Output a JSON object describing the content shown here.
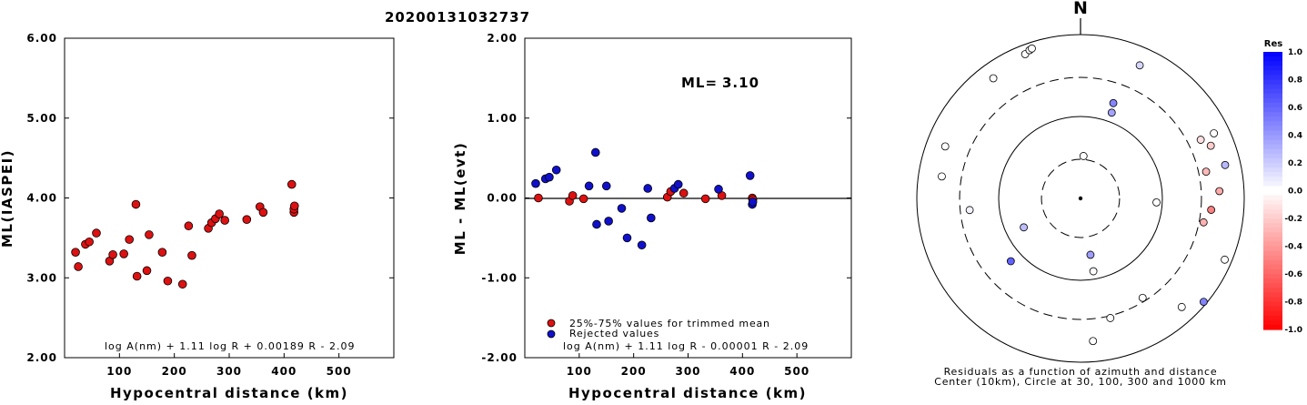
{
  "title": "20200131032737",
  "chart_data": [
    {
      "type": "scatter",
      "xlabel": "Hypocentral distance (km)",
      "ylabel": "ML(IASPEI)",
      "xlim": [
        0,
        600
      ],
      "ylim": [
        2,
        6
      ],
      "xticks": [
        "100",
        "200",
        "300",
        "400",
        "500"
      ],
      "yticks": [
        "2.00",
        "3.00",
        "4.00",
        "5.00",
        "6.00"
      ],
      "formula": "log A(nm) + 1.11 log R + 0.00189 R - 2.09",
      "color": "#dd1111",
      "points": [
        [
          20,
          3.32
        ],
        [
          25,
          3.14
        ],
        [
          38,
          3.42
        ],
        [
          45,
          3.45
        ],
        [
          58,
          3.56
        ],
        [
          82,
          3.21
        ],
        [
          88,
          3.29
        ],
        [
          108,
          3.3
        ],
        [
          118,
          3.48
        ],
        [
          130,
          3.92
        ],
        [
          132,
          3.02
        ],
        [
          150,
          3.09
        ],
        [
          154,
          3.54
        ],
        [
          178,
          3.32
        ],
        [
          188,
          2.96
        ],
        [
          215,
          2.92
        ],
        [
          226,
          3.65
        ],
        [
          232,
          3.28
        ],
        [
          262,
          3.62
        ],
        [
          268,
          3.69
        ],
        [
          275,
          3.74
        ],
        [
          282,
          3.8
        ],
        [
          292,
          3.72
        ],
        [
          332,
          3.73
        ],
        [
          356,
          3.89
        ],
        [
          362,
          3.82
        ],
        [
          414,
          4.17
        ],
        [
          418,
          3.82
        ],
        [
          418,
          3.86
        ],
        [
          419,
          3.9
        ]
      ]
    },
    {
      "type": "scatter",
      "xlabel": "Hypocentral distance (km)",
      "ylabel": "ML - ML(evt)",
      "xlim": [
        0,
        600
      ],
      "ylim": [
        -2,
        2
      ],
      "xticks": [
        "100",
        "200",
        "300",
        "400",
        "500"
      ],
      "yticks": [
        "-2.00",
        "-1.00",
        "0.00",
        "1.00",
        "2.00"
      ],
      "formula": "log A(nm) + 1.11 log R - 0.00001 R - 2.09",
      "ml_label": "ML=",
      "ml_value": "3.10",
      "reference_line": 0,
      "legend": [
        {
          "label": "25%-75% values for trimmed mean",
          "color": "#dd1111"
        },
        {
          "label": "Rejected values",
          "color": "#1010cc"
        }
      ],
      "series": [
        {
          "name": "25%-75% values for trimmed mean",
          "color": "#dd1111",
          "points": [
            [
              25,
              0.0
            ],
            [
              82,
              -0.04
            ],
            [
              88,
              0.03
            ],
            [
              108,
              -0.01
            ],
            [
              262,
              0.01
            ],
            [
              268,
              0.08
            ],
            [
              292,
              0.06
            ],
            [
              332,
              -0.01
            ],
            [
              362,
              0.03
            ],
            [
              418,
              0.0
            ],
            [
              419,
              -0.02
            ]
          ]
        },
        {
          "name": "Rejected values",
          "color": "#1010cc",
          "points": [
            [
              20,
              0.18
            ],
            [
              38,
              0.24
            ],
            [
              45,
              0.26
            ],
            [
              58,
              0.35
            ],
            [
              118,
              0.15
            ],
            [
              130,
              0.57
            ],
            [
              132,
              -0.33
            ],
            [
              150,
              0.15
            ],
            [
              154,
              -0.29
            ],
            [
              178,
              -0.13
            ],
            [
              188,
              -0.5
            ],
            [
              215,
              -0.59
            ],
            [
              226,
              0.12
            ],
            [
              232,
              -0.25
            ],
            [
              275,
              0.12
            ],
            [
              282,
              0.17
            ],
            [
              356,
              0.11
            ],
            [
              414,
              0.28
            ],
            [
              418,
              -0.08
            ],
            [
              419,
              -0.05
            ]
          ]
        }
      ]
    },
    {
      "type": "scatter",
      "north_label": "N",
      "caption_line1": "Residuals as a function of azimuth and distance",
      "caption_line2": "Center (10km), Circle at 30, 100, 300 and 1000 km",
      "colorbar_title": "Res",
      "colorbar_range": [
        -1.0,
        1.0
      ],
      "colorbar_ticks": [
        "1.0",
        "0.8",
        "0.6",
        "0.4",
        "0.2",
        "0.0",
        "-0.2",
        "-0.4",
        "-0.6",
        "-0.8",
        "-1.0"
      ],
      "rings_km": [
        30,
        100,
        300,
        1000
      ],
      "ring_styles": [
        "dashed",
        "solid",
        "dashed",
        "solid"
      ],
      "stations": [
        {
          "azimuth": 339,
          "distance_km": 770,
          "residual": 0.0
        },
        {
          "azimuth": 341,
          "distance_km": 820,
          "residual": 0.0
        },
        {
          "azimuth": 342,
          "distance_km": 840,
          "residual": 0.0
        },
        {
          "azimuth": 324,
          "distance_km": 650,
          "residual": 0.0
        },
        {
          "azimuth": 24,
          "distance_km": 600,
          "residual": 0.16
        },
        {
          "azimuth": 291,
          "distance_km": 590,
          "residual": 0.0
        },
        {
          "azimuth": 279,
          "distance_km": 520,
          "residual": 0.0
        },
        {
          "azimuth": 264,
          "distance_km": 230,
          "residual": 0.05
        },
        {
          "azimuth": 243,
          "distance_km": 60,
          "residual": 0.26
        },
        {
          "azimuth": 4,
          "distance_km": 33,
          "residual": 0.0
        },
        {
          "azimuth": 20,
          "distance_km": 130,
          "residual": 0.36
        },
        {
          "azimuth": 19,
          "distance_km": 170,
          "residual": 0.48
        },
        {
          "azimuth": 77,
          "distance_km": 650,
          "residual": 0.28
        },
        {
          "azimuth": 64,
          "distance_km": 650,
          "residual": 0.0
        },
        {
          "azimuth": 68,
          "distance_km": 520,
          "residual": -0.2
        },
        {
          "azimuth": 64,
          "distance_km": 430,
          "residual": -0.12
        },
        {
          "azimuth": 78,
          "distance_km": 370,
          "residual": -0.28
        },
        {
          "azimuth": 87,
          "distance_km": 500,
          "residual": -0.33
        },
        {
          "azimuth": 95,
          "distance_km": 400,
          "residual": -0.5
        },
        {
          "azimuth": 101,
          "distance_km": 340,
          "residual": -0.31
        },
        {
          "azimuth": 93,
          "distance_km": 85,
          "residual": 0.0
        },
        {
          "azimuth": 113,
          "distance_km": 820,
          "residual": 0.0
        },
        {
          "azimuth": 130,
          "distance_km": 920,
          "residual": 0.49
        },
        {
          "azimuth": 137,
          "distance_km": 650,
          "residual": 0.0
        },
        {
          "azimuth": 148,
          "distance_km": 270,
          "residual": 0.0
        },
        {
          "azimuth": 170,
          "distance_km": 50,
          "residual": 0.38
        },
        {
          "azimuth": 170,
          "distance_km": 80,
          "residual": 0.0
        },
        {
          "azimuth": 166,
          "distance_km": 320,
          "residual": 0.0
        },
        {
          "azimuth": 175,
          "distance_km": 560,
          "residual": 0.0
        },
        {
          "azimuth": 228,
          "distance_km": 140,
          "residual": 0.62
        }
      ]
    }
  ]
}
